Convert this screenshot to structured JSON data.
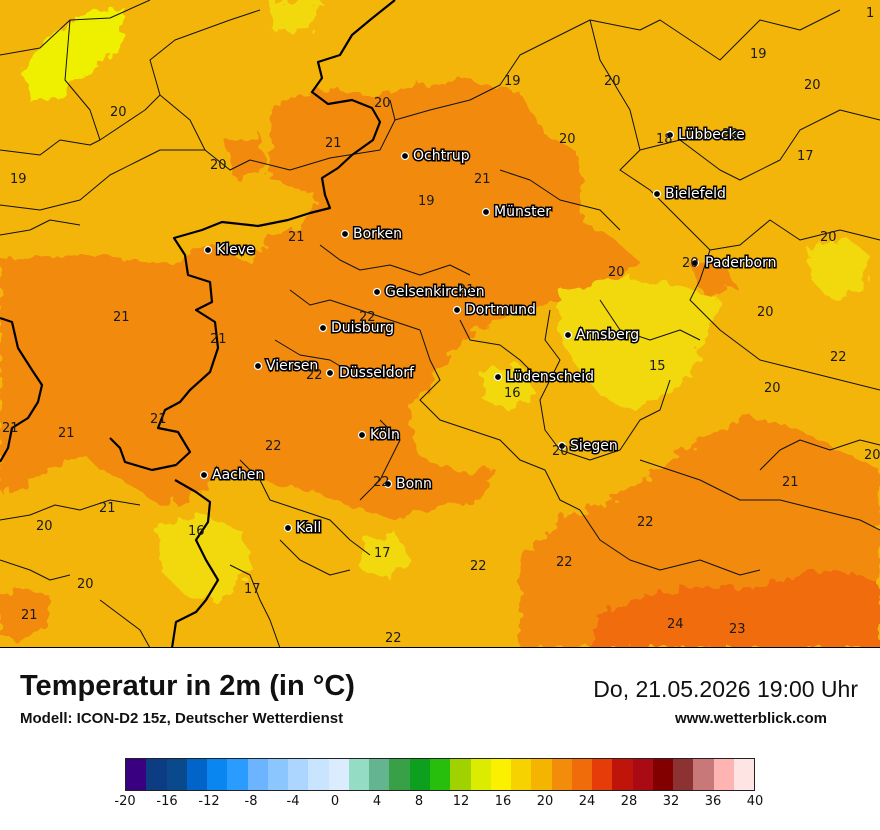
{
  "title": "Temperatur in 2m (in °C)",
  "model": "Modell: ICON-D2 15z, Deutscher Wetterdienst",
  "datetime": "Do, 21.05.2026 19:00 Uhr",
  "website": "www.wetterblick.com",
  "cities": [
    "Ochtrup",
    "Münster",
    "Bielefeld",
    "Lübbecke",
    "Paderborn",
    "Borken",
    "Kleve",
    "Gelsenkirchen",
    "Dortmund",
    "Duisburg",
    "Arnsberg",
    "Viersen",
    "Düsseldorf",
    "Lüdenscheid",
    "Köln",
    "Siegen",
    "Aachen",
    "Bonn",
    "Kall"
  ],
  "temperature_values": [
    "1",
    "19",
    "19",
    "20",
    "20",
    "20",
    "20",
    "20",
    "18",
    "20",
    "17",
    "21",
    "20",
    "21",
    "19",
    "21",
    "20",
    "20",
    "20",
    "22",
    "21",
    "21",
    "21",
    "22",
    "20",
    "22",
    "19",
    "16",
    "15",
    "20",
    "21",
    "20",
    "22",
    "21",
    "21",
    "22",
    "16",
    "20",
    "21",
    "17",
    "22",
    "22",
    "17",
    "20",
    "21",
    "22",
    "24",
    "23"
  ],
  "legend": {
    "colors": [
      "#3a0082",
      "#0c3c82",
      "#0a4a8c",
      "#0064c8",
      "#0a86f0",
      "#2a9cff",
      "#6cb4ff",
      "#8cc6ff",
      "#acd6ff",
      "#c8e4ff",
      "#dcecff",
      "#94dcc4",
      "#64b490",
      "#38a046",
      "#0ca01e",
      "#28be0c",
      "#a0d200",
      "#dcec00",
      "#faf000",
      "#f6d200",
      "#f4b400",
      "#f28c0a",
      "#f06c0a",
      "#e63c0a",
      "#be140a",
      "#aa0a14",
      "#820000",
      "#8c3232",
      "#c87878",
      "#ffb4b4",
      "#ffe4e4"
    ],
    "ticks": [
      "-20",
      "-16",
      "-12",
      "-8",
      "-4",
      "0",
      "4",
      "8",
      "12",
      "16",
      "20",
      "24",
      "28",
      "32",
      "36",
      "40"
    ]
  }
}
